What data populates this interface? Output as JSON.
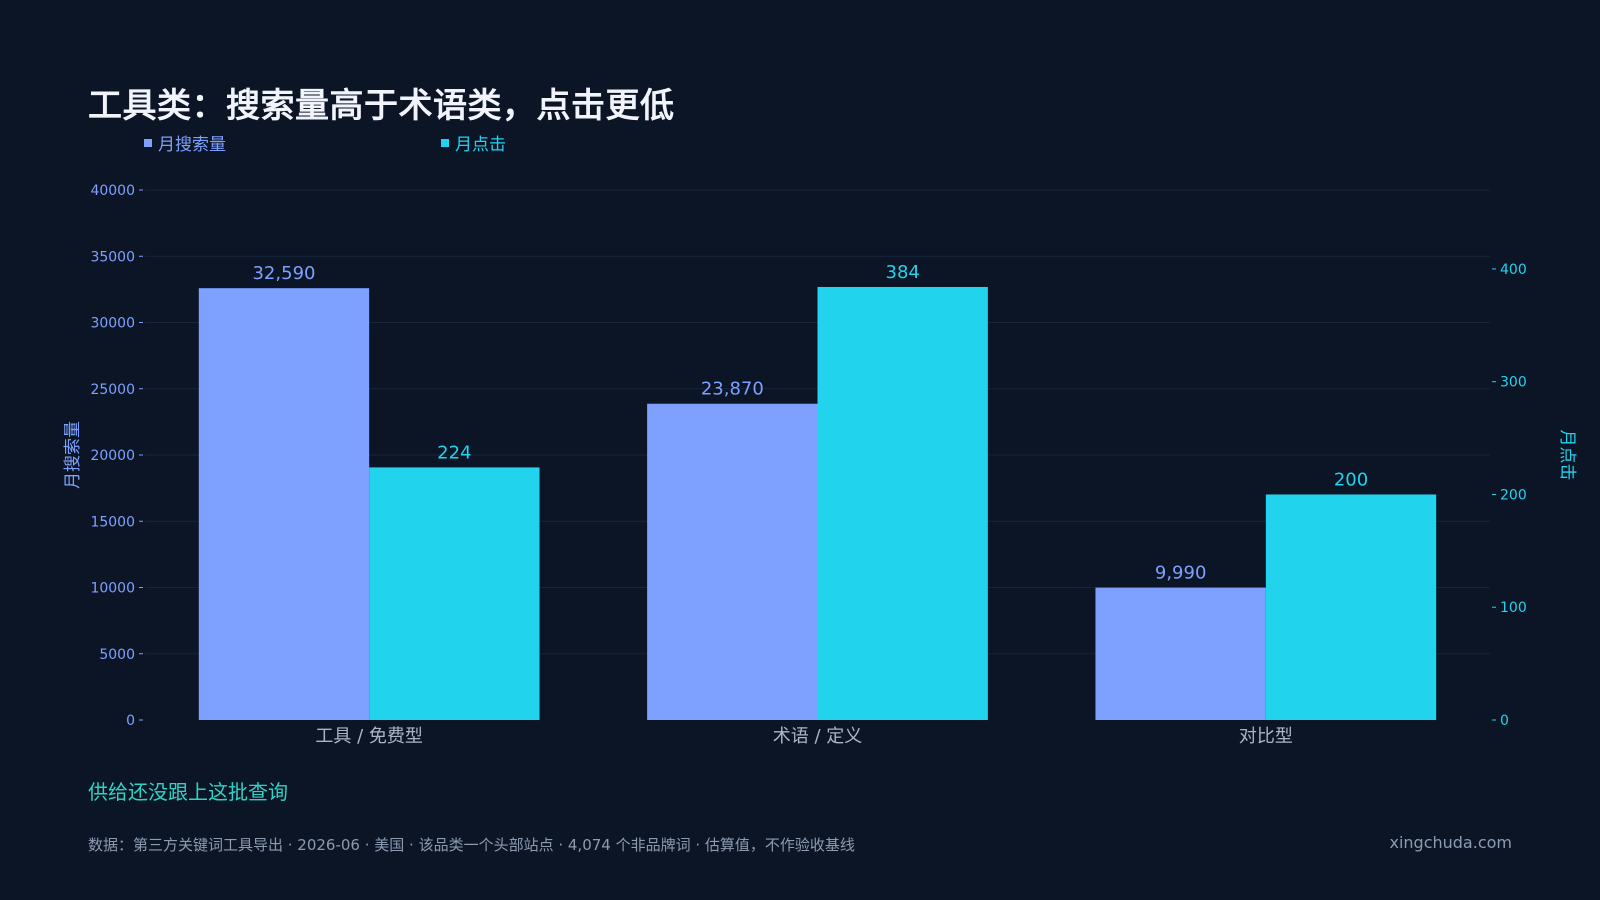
{
  "title": "工具类：搜索量高于术语类，点击更低",
  "colors": {
    "background": "#0b1526",
    "search": "#7ea0ff",
    "clicks": "#22d3ee",
    "grid": "#17243a",
    "subtitle": "#2fd3c6",
    "muted": "#8d9bb0"
  },
  "chart_data": {
    "type": "bar",
    "categories": [
      "工具 / 免费型",
      "术语 / 定义",
      "对比型"
    ],
    "series": [
      {
        "name": "月搜索量",
        "axis": "left",
        "values": [
          32590,
          23870,
          9990
        ],
        "labels": [
          "32,590",
          "23,870",
          "9,990"
        ]
      },
      {
        "name": "月点击",
        "axis": "right",
        "values": [
          224,
          384,
          200
        ],
        "labels": [
          "224",
          "384",
          "200"
        ]
      }
    ],
    "ylabel": "月搜索量",
    "ylim": [
      0,
      40000
    ],
    "yticks": [
      0,
      5000,
      10000,
      15000,
      20000,
      25000,
      30000,
      35000,
      40000
    ],
    "y2label": "月点击",
    "y2lim": [
      0,
      470
    ],
    "y2ticks": [
      0,
      100,
      200,
      300,
      400
    ],
    "grid": true,
    "legend": "top-left"
  },
  "subtitle": "供给还没跟上这批查询",
  "footnote": "数据：第三方关键词工具导出 · 2026-06 · 美国 · 该品类一个头部站点 · 4,074 个非品牌词 · 估算值，不作验收基线",
  "brand": "xingchuda.com"
}
